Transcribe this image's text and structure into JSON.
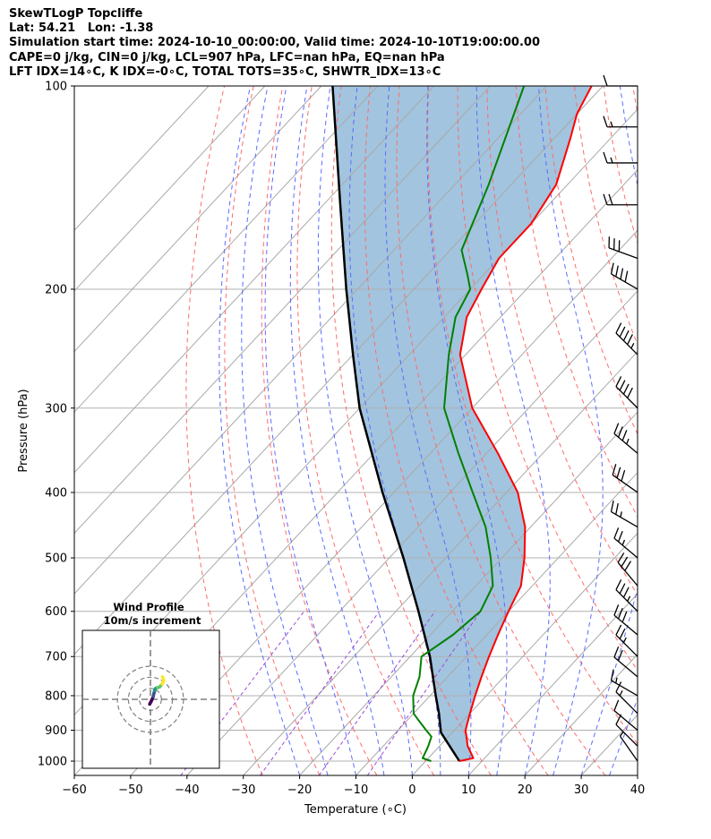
{
  "header": {
    "line1": "SkewTLogP Topcliffe",
    "line2": "Lat: 54.21   Lon: -1.38",
    "line3": "Simulation start time: 2024-10-10_00:00:00, Valid time: 2024-10-10T19:00:00.00",
    "line4": "CAPE=0 j/kg, CIN=0 j/kg, LCL=907 hPa, LFC=nan hPa, EQ=nan hPa",
    "line5": "LFT IDX=14∘C, K IDX=-0∘C, TOTAL TOTS=35∘C, SHWTR_IDX=13∘C"
  },
  "chart_data": {
    "type": "line",
    "xlabel": "Temperature (∘C)",
    "ylabel": "Pressure (hPa)",
    "xlim": [
      -60,
      40
    ],
    "ylim_pressure": [
      1050,
      100
    ],
    "y_scale": "log",
    "skew": "skew-T log-p",
    "x_ticks": [
      "−60",
      "−50",
      "−40",
      "−30",
      "−20",
      "−10",
      "0",
      "10",
      "20",
      "30",
      "40"
    ],
    "y_ticks": [
      "100",
      "200",
      "300",
      "400",
      "500",
      "600",
      "700",
      "800",
      "900",
      "1000"
    ],
    "y_tick_values": [
      100,
      200,
      300,
      400,
      500,
      600,
      700,
      800,
      900,
      1000
    ],
    "temperature_profile": [
      [
        1000,
        6
      ],
      [
        990,
        8
      ],
      [
        950,
        5
      ],
      [
        900,
        2
      ],
      [
        850,
        0
      ],
      [
        800,
        -2
      ],
      [
        750,
        -4
      ],
      [
        700,
        -6
      ],
      [
        650,
        -8
      ],
      [
        600,
        -10
      ],
      [
        550,
        -12
      ],
      [
        500,
        -16
      ],
      [
        450,
        -21
      ],
      [
        400,
        -28
      ],
      [
        350,
        -38
      ],
      [
        300,
        -50
      ],
      [
        250,
        -61
      ],
      [
        220,
        -66
      ],
      [
        200,
        -68
      ],
      [
        180,
        -70
      ],
      [
        160,
        -70
      ],
      [
        140,
        -72
      ],
      [
        120,
        -77
      ],
      [
        110,
        -80
      ],
      [
        100,
        -82
      ]
    ],
    "dewpoint_profile": [
      [
        1000,
        1
      ],
      [
        990,
        -1
      ],
      [
        950,
        -2
      ],
      [
        920,
        -3
      ],
      [
        900,
        -5
      ],
      [
        870,
        -8
      ],
      [
        850,
        -10
      ],
      [
        800,
        -13
      ],
      [
        750,
        -15
      ],
      [
        700,
        -18
      ],
      [
        650,
        -16
      ],
      [
        600,
        -15
      ],
      [
        550,
        -17
      ],
      [
        500,
        -22
      ],
      [
        450,
        -28
      ],
      [
        400,
        -36
      ],
      [
        350,
        -45
      ],
      [
        300,
        -55
      ],
      [
        250,
        -63
      ],
      [
        220,
        -68
      ],
      [
        200,
        -70
      ],
      [
        190,
        -73
      ],
      [
        175,
        -78
      ],
      [
        140,
        -84
      ],
      [
        100,
        -94
      ]
    ],
    "parcel_profile": [
      [
        1000,
        6
      ],
      [
        907,
        -2
      ],
      [
        850,
        -5.5
      ],
      [
        800,
        -9
      ],
      [
        700,
        -16.5
      ],
      [
        600,
        -26
      ],
      [
        500,
        -37.5
      ],
      [
        400,
        -52
      ],
      [
        300,
        -70
      ],
      [
        250,
        -80
      ],
      [
        200,
        -92
      ],
      [
        150,
        -107
      ],
      [
        100,
        -128
      ]
    ],
    "wind_barbs_kt": [
      [
        1000,
        5,
        35
      ],
      [
        950,
        8,
        45
      ],
      [
        900,
        10,
        50
      ],
      [
        850,
        15,
        45
      ],
      [
        800,
        15,
        60
      ],
      [
        750,
        20,
        50
      ],
      [
        700,
        25,
        45
      ],
      [
        650,
        30,
        50
      ],
      [
        600,
        35,
        45
      ],
      [
        550,
        30,
        40
      ],
      [
        500,
        25,
        50
      ],
      [
        450,
        25,
        60
      ],
      [
        400,
        30,
        55
      ],
      [
        350,
        35,
        50
      ],
      [
        300,
        40,
        45
      ],
      [
        250,
        45,
        45
      ],
      [
        200,
        40,
        60
      ],
      [
        180,
        30,
        70
      ],
      [
        150,
        20,
        90
      ],
      [
        130,
        15,
        90
      ],
      [
        115,
        15,
        90
      ],
      [
        100,
        10,
        90
      ]
    ],
    "series": [
      {
        "name": "",
        "color": "#ff0000",
        "role": "temperature"
      },
      {
        "name": "",
        "color": "#008000",
        "role": "dewpoint"
      },
      {
        "name": "",
        "color": "#000000",
        "role": "parcel"
      }
    ],
    "cin_fill_color": "#a2c4de",
    "reference_lines": {
      "isotherms": "gray",
      "dry_adiabats": "red dashed",
      "moist_adiabats": "blue dashed",
      "mixing_ratio": "purple dashed"
    }
  },
  "inset": {
    "title1": "Wind Profile",
    "title2": "10m/s increment",
    "rings_ms": [
      10,
      20,
      30
    ],
    "hodograph_uv": [
      [
        -2,
        12
      ],
      [
        -1,
        10
      ],
      [
        1,
        7
      ],
      [
        3,
        3
      ],
      [
        5,
        -2
      ],
      [
        7,
        -7
      ],
      [
        8,
        -12
      ],
      [
        9,
        -16
      ],
      [
        10,
        -18
      ],
      [
        10,
        -21
      ],
      [
        11,
        -24
      ],
      [
        12,
        -26
      ],
      [
        14,
        -28
      ],
      [
        17,
        -29
      ],
      [
        21,
        -30
      ],
      [
        23,
        -31
      ],
      [
        25,
        -33
      ],
      [
        29,
        -38
      ],
      [
        31,
        -42
      ],
      [
        33,
        -45
      ],
      [
        33,
        -48
      ],
      [
        32,
        -52
      ],
      [
        30,
        -56
      ]
    ],
    "colormap": [
      "#440154",
      "#3b528b",
      "#21918c",
      "#5ec962",
      "#fde725"
    ]
  }
}
